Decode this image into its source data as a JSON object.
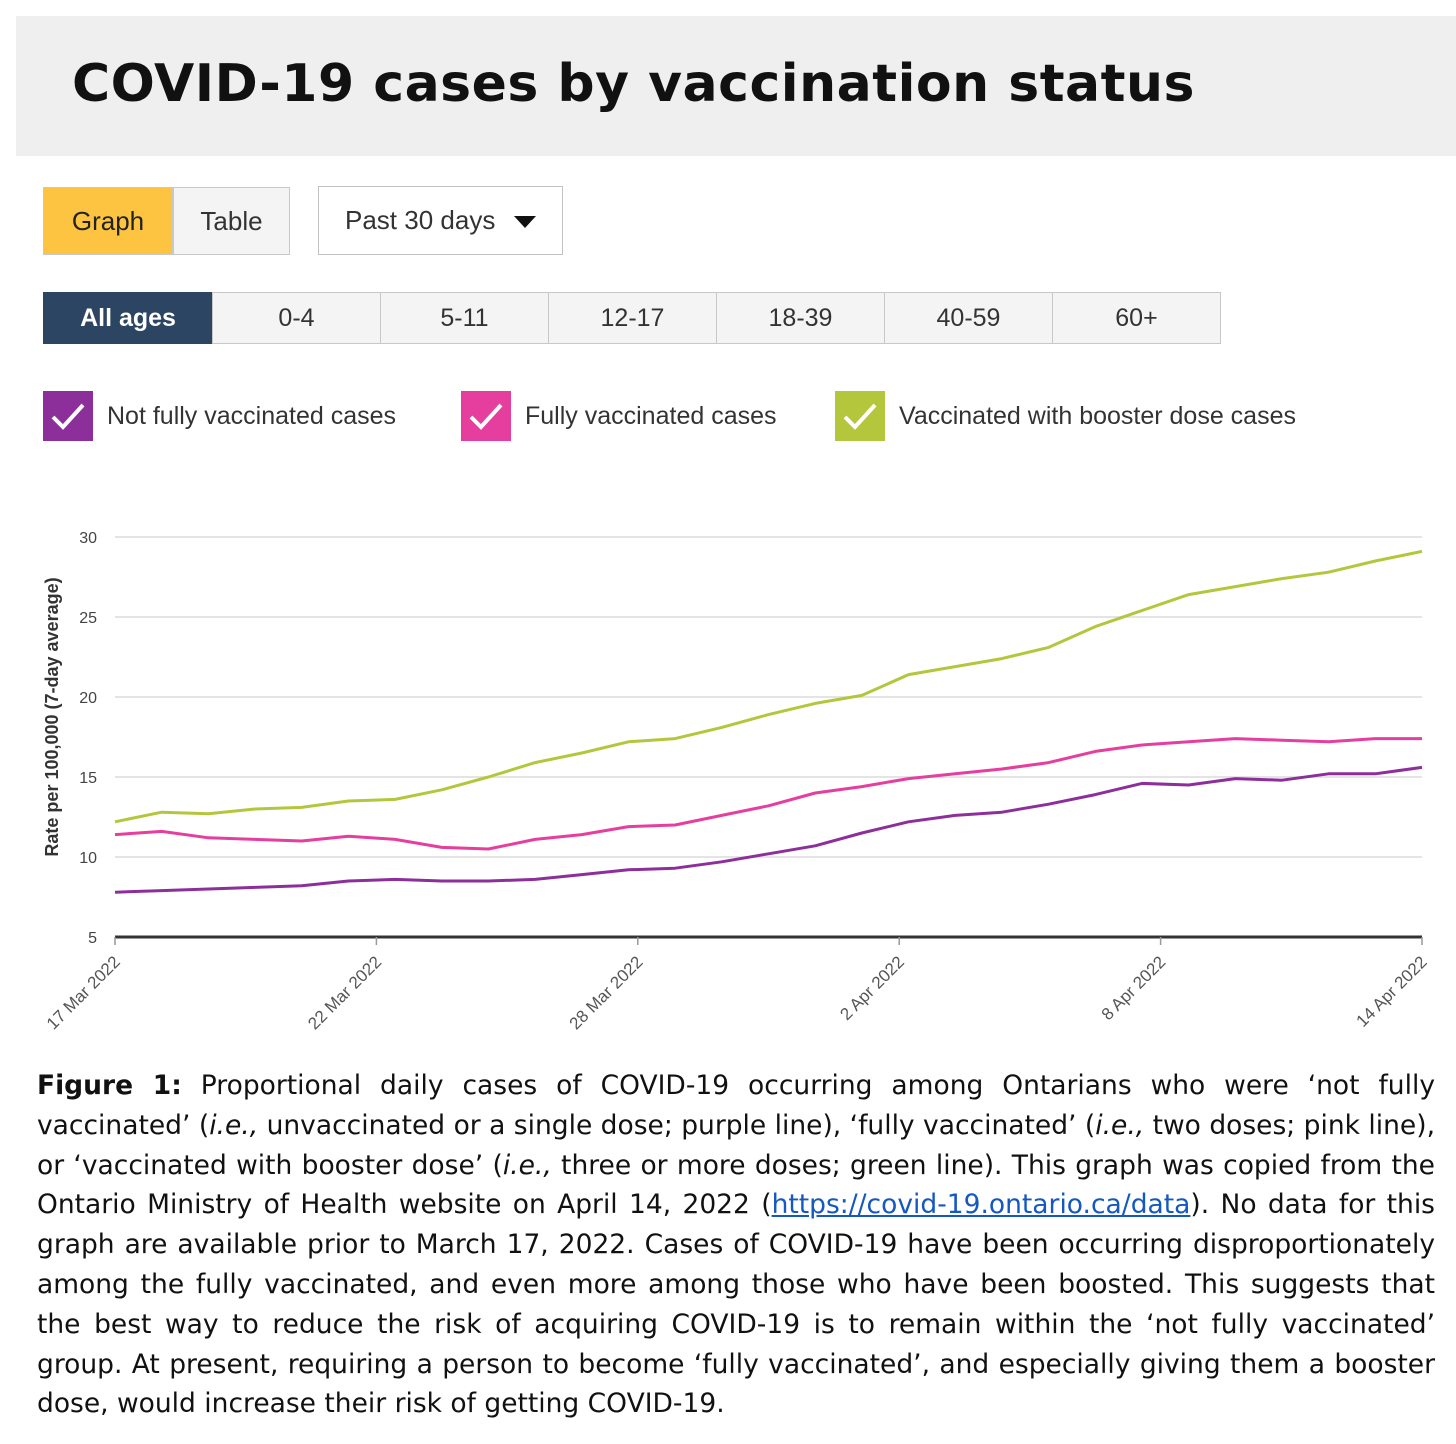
{
  "header": {
    "title": "COVID-19 cases by vaccination status"
  },
  "view_toggle": {
    "graph_label": "Graph",
    "table_label": "Table"
  },
  "period_select": {
    "value": "Past 30 days"
  },
  "age_tabs": [
    "All ages",
    "0-4",
    "5-11",
    "12-17",
    "18-39",
    "40-59",
    "60+"
  ],
  "active_age_tab": "All ages",
  "legend": [
    {
      "label": "Not fully vaccinated cases",
      "color": "#8d2f9b",
      "checked": true
    },
    {
      "label": "Fully vaccinated cases",
      "color": "#e63e9f",
      "checked": true
    },
    {
      "label": "Vaccinated with booster dose cases",
      "color": "#b4c73c",
      "checked": true
    }
  ],
  "chart_data": {
    "type": "line",
    "ylabel": "Rate per 100,000 (7-day average)",
    "xlabel": "",
    "ylim": [
      5,
      30
    ],
    "y_ticks": [
      5,
      10,
      15,
      20,
      25,
      30
    ],
    "grid": true,
    "x_tick_labels": [
      "17 Mar 2022",
      "22 Mar 2022",
      "28 Mar 2022",
      "2 Apr 2022",
      "8 Apr 2022",
      "14 Apr 2022"
    ],
    "x": [
      "2022-03-17",
      "2022-03-18",
      "2022-03-19",
      "2022-03-20",
      "2022-03-21",
      "2022-03-22",
      "2022-03-23",
      "2022-03-24",
      "2022-03-25",
      "2022-03-26",
      "2022-03-27",
      "2022-03-28",
      "2022-03-29",
      "2022-03-30",
      "2022-03-31",
      "2022-04-01",
      "2022-04-02",
      "2022-04-03",
      "2022-04-04",
      "2022-04-05",
      "2022-04-06",
      "2022-04-07",
      "2022-04-08",
      "2022-04-09",
      "2022-04-10",
      "2022-04-11",
      "2022-04-12",
      "2022-04-13",
      "2022-04-14"
    ],
    "series": [
      {
        "name": "Not fully vaccinated cases",
        "color": "#8d2f9b",
        "values": [
          7.8,
          7.9,
          8.0,
          8.1,
          8.2,
          8.5,
          8.6,
          8.5,
          8.5,
          8.6,
          8.9,
          9.2,
          9.3,
          9.7,
          10.2,
          10.7,
          11.5,
          12.2,
          12.6,
          12.8,
          13.3,
          13.9,
          14.6,
          14.5,
          14.9,
          14.8,
          15.2,
          15.2,
          15.6
        ]
      },
      {
        "name": "Fully vaccinated cases",
        "color": "#e63e9f",
        "values": [
          11.4,
          11.6,
          11.2,
          11.1,
          11.0,
          11.3,
          11.1,
          10.6,
          10.5,
          11.1,
          11.4,
          11.9,
          12.0,
          12.6,
          13.2,
          14.0,
          14.4,
          14.9,
          15.2,
          15.5,
          15.9,
          16.6,
          17.0,
          17.2,
          17.4,
          17.3,
          17.2,
          17.4,
          17.4
        ]
      },
      {
        "name": "Vaccinated with booster dose cases",
        "color": "#b4c73c",
        "values": [
          12.2,
          12.8,
          12.7,
          13.0,
          13.1,
          13.5,
          13.6,
          14.2,
          15.0,
          15.9,
          16.5,
          17.2,
          17.4,
          18.1,
          18.9,
          19.6,
          20.1,
          21.4,
          21.9,
          22.4,
          23.1,
          24.4,
          25.4,
          26.4,
          26.9,
          27.4,
          27.8,
          28.5,
          29.1
        ]
      }
    ]
  },
  "caption": {
    "lead": "Figure 1:",
    "part1": " Proportional daily cases of COVID-19 occurring among Ontarians who were ‘not fully vaccinated’ (",
    "ie1": "i.e.,",
    "part2": " unvaccinated or a single dose; purple line), ‘fully vaccinated’ (",
    "ie2": "i.e.,",
    "part3": " two doses; pink line), or ‘vaccinated with booster dose’ (",
    "ie3": "i.e.,",
    "part4": " three or more doses; green line). This graph was copied from the Ontario Ministry of Health website on April 14, 2022 (",
    "link": "https://covid-19.ontario.ca/data",
    "part5": "). No data for this graph are available prior to March 17, 2022. Cases of COVID-19 have been occurring disproportionately among the fully vaccinated, and even more among those who have been boosted. This suggests that the best way to reduce the risk of acquiring COVID-19 is to remain within the ‘not fully vaccinated’ group. At present, requiring a person to become ‘fully vaccinated’, and especially giving them a booster dose, would increase their risk of getting COVID-19."
  }
}
